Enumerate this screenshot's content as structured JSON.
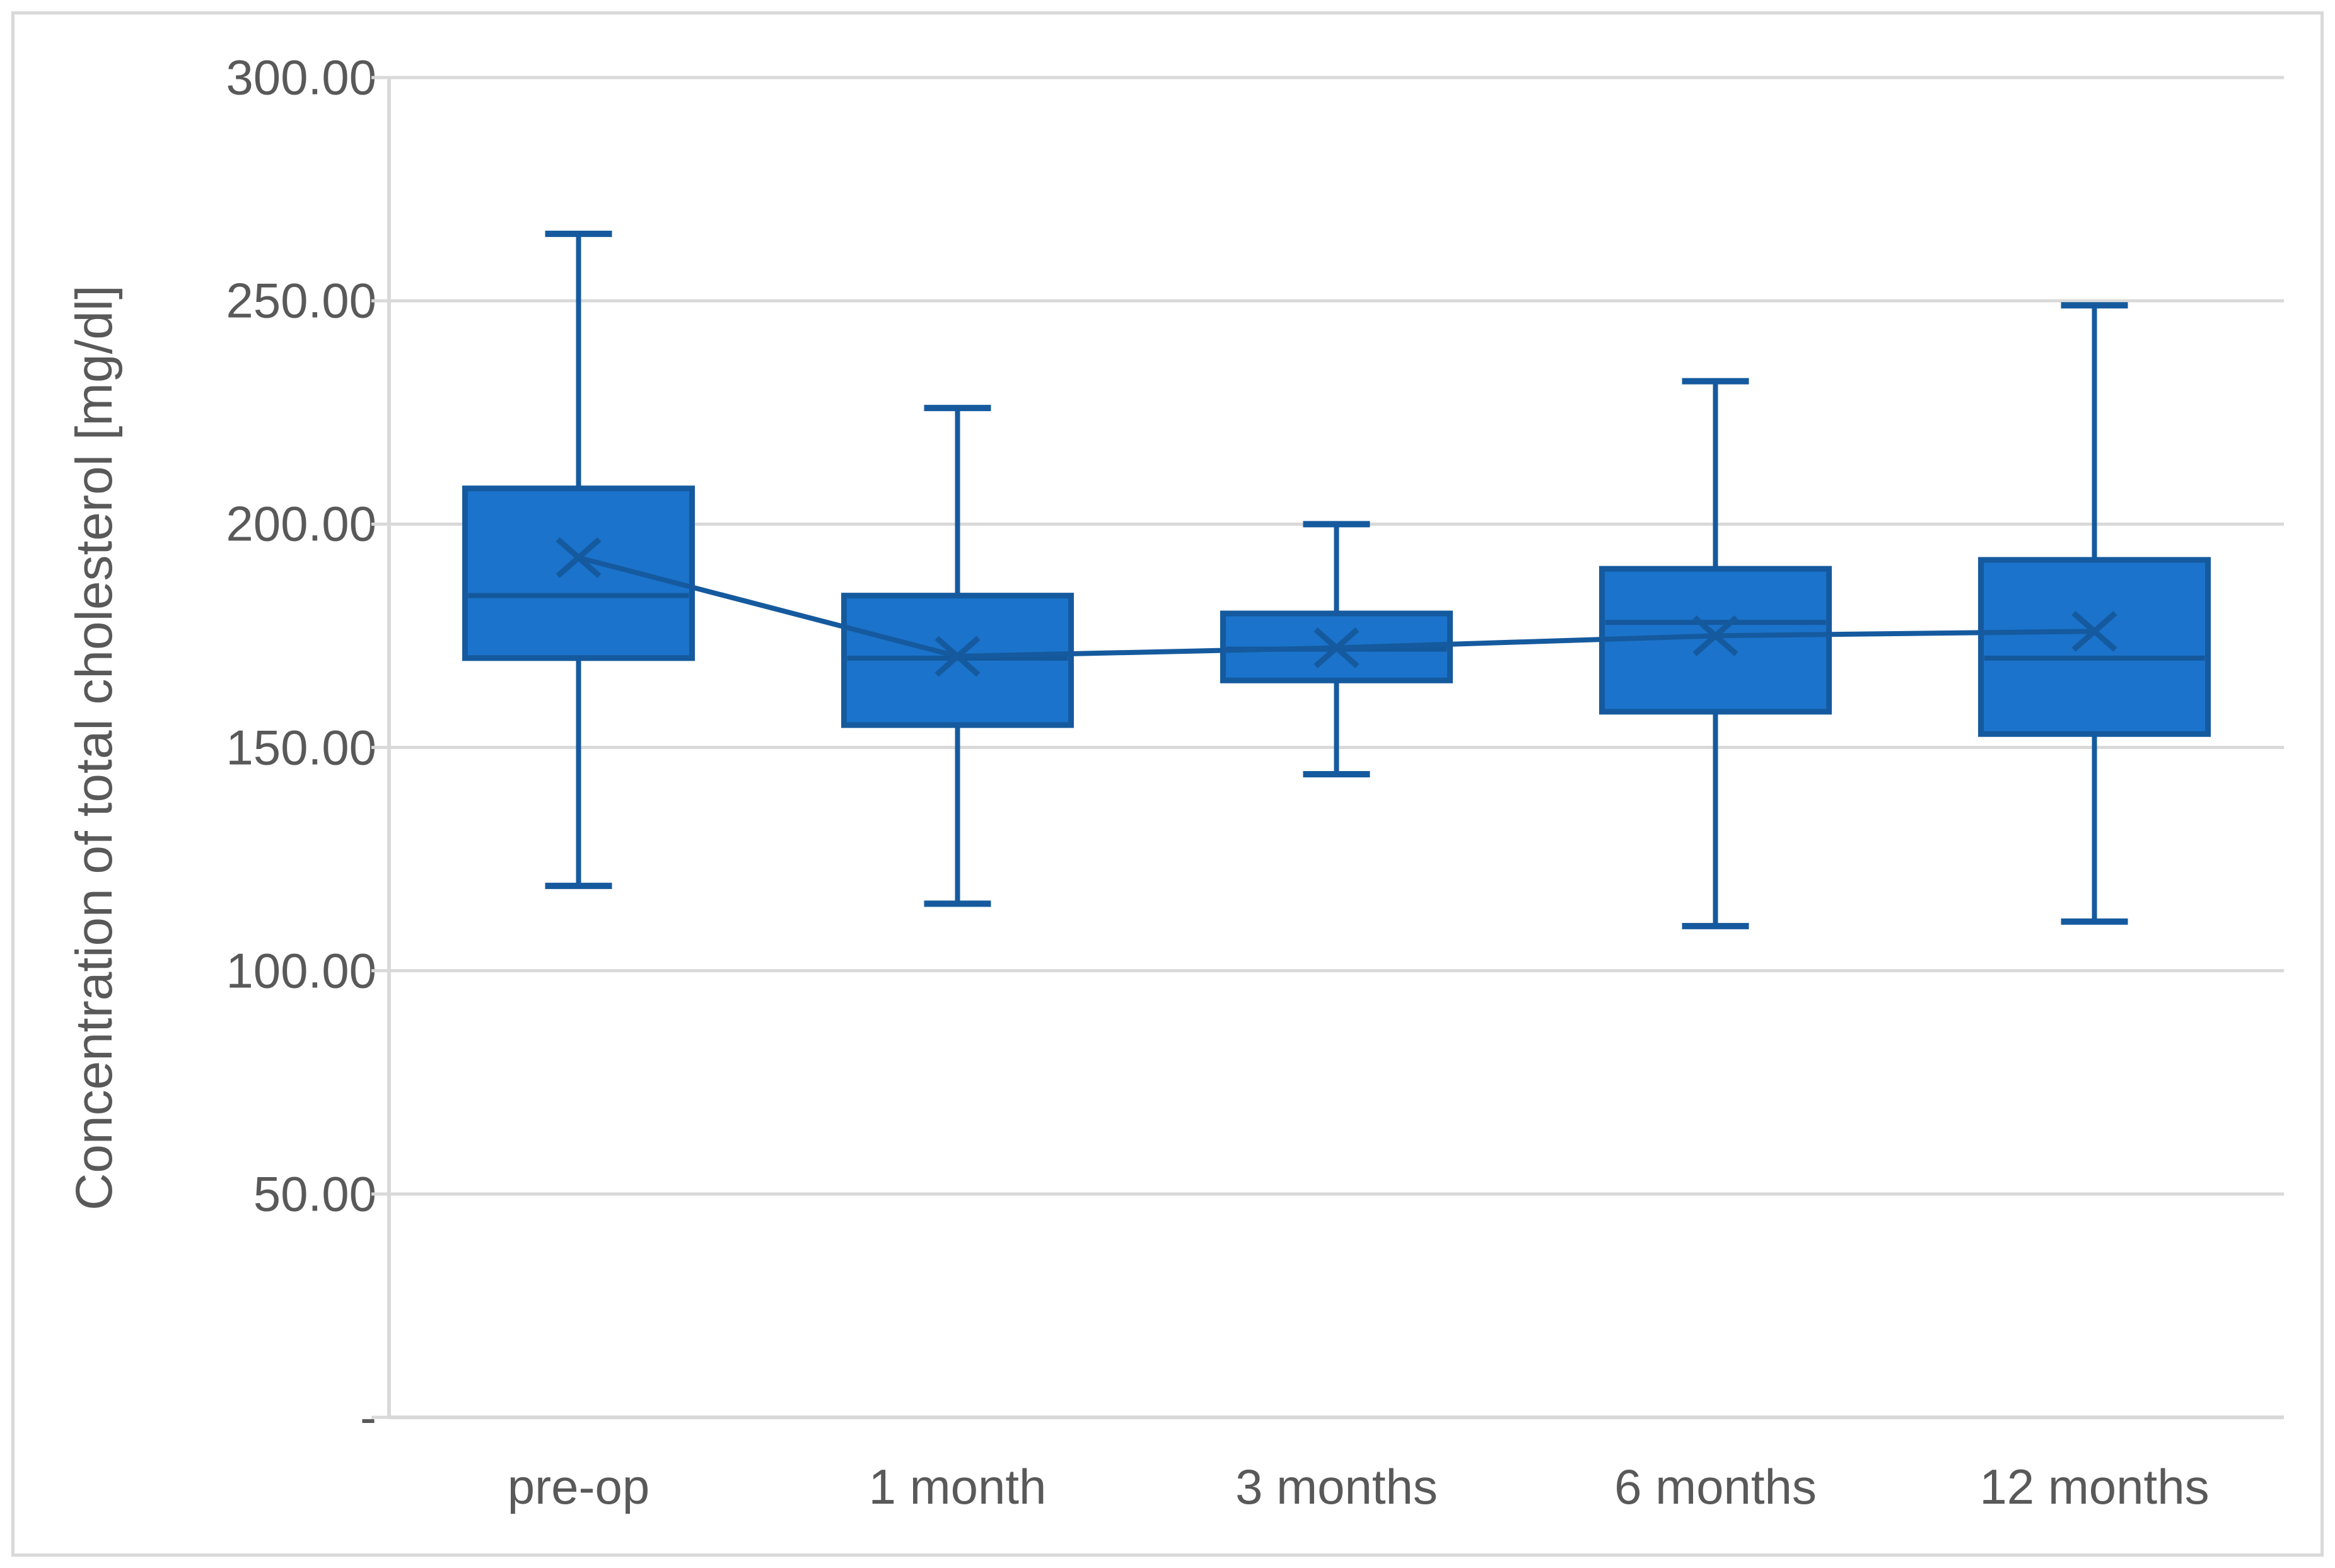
{
  "figure": {
    "background": "#ffffff",
    "border_color": "#d9d9d9"
  },
  "chart_data": {
    "type": "box-whisker",
    "title": "",
    "ylabel": "Concentration of total cholesterol [mg/dl]",
    "xlabel": "",
    "categories": [
      "pre-op",
      "1 month",
      "3 months",
      "6 months",
      "12 months"
    ],
    "series": [
      {
        "name": "pre-op",
        "min": 119,
        "q1": 170,
        "median": 184,
        "mean": 192.5,
        "q3": 208,
        "max": 265
      },
      {
        "name": "1 month",
        "min": 115,
        "q1": 155,
        "median": 170,
        "mean": 170.4,
        "q3": 184,
        "max": 226
      },
      {
        "name": "3 months",
        "min": 144,
        "q1": 165,
        "median": 172,
        "mean": 172.3,
        "q3": 180,
        "max": 200
      },
      {
        "name": "6 months",
        "min": 110,
        "q1": 158,
        "median": 178,
        "mean": 175.0,
        "q3": 190,
        "max": 232
      },
      {
        "name": "12 months",
        "min": 111,
        "q1": 153,
        "median": 170,
        "mean": 176.0,
        "q3": 192,
        "max": 249
      }
    ],
    "mean_marker": "x",
    "mean_trend_line": true,
    "ylim": [
      0,
      300
    ],
    "y_tick_step": 50,
    "y_tick_labels": [
      "-",
      "50.00",
      "100.00",
      "150.00",
      "200.00",
      "250.00",
      "300.00"
    ],
    "grid": true,
    "legend": "none",
    "colors": {
      "box_fill": "#1b73cb",
      "box_border": "#155a9e",
      "whisker": "#155a9e",
      "median_line": "#14589b",
      "mean_marker": "#155a9e",
      "trend_line": "#155a9e",
      "gridline": "#d9d9d9",
      "axis_line": "#d9d9d9",
      "text": "#595959"
    }
  }
}
